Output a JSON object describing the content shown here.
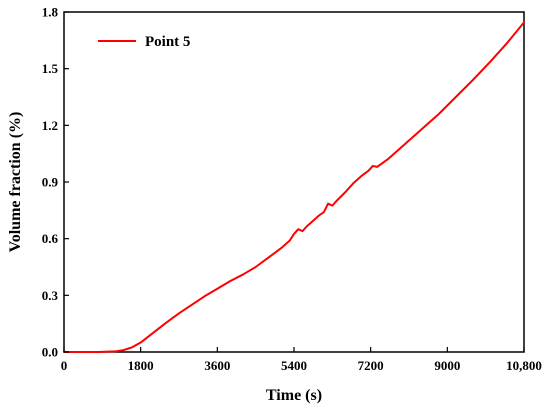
{
  "chart_data": {
    "type": "line",
    "xlabel": "Time (s)",
    "ylabel": "Volume fraction (%)",
    "xlim": [
      0,
      10800
    ],
    "ylim": [
      0,
      1.8
    ],
    "x_ticks": [
      0,
      1800,
      3600,
      5400,
      7200,
      9000,
      10800
    ],
    "x_tick_labels": [
      "0",
      "1800",
      "3600",
      "5400",
      "7200",
      "9000",
      "10,800"
    ],
    "y_ticks": [
      0.0,
      0.3,
      0.6,
      0.9,
      1.2,
      1.5,
      1.8
    ],
    "y_tick_labels": [
      "0.0",
      "0.3",
      "0.6",
      "0.9",
      "1.2",
      "1.5",
      "1.8"
    ],
    "grid": false,
    "legend_position": "top-left",
    "series": [
      {
        "name": "Point 5",
        "color": "#ff0000",
        "x": [
          0,
          800,
          1200,
          1400,
          1600,
          1800,
          2000,
          2200,
          2400,
          2700,
          3000,
          3300,
          3600,
          3900,
          4200,
          4500,
          4800,
          5100,
          5300,
          5400,
          5500,
          5600,
          5700,
          5800,
          6000,
          6100,
          6200,
          6300,
          6400,
          6600,
          6800,
          7000,
          7150,
          7250,
          7350,
          7600,
          8000,
          8400,
          8800,
          9200,
          9600,
          10000,
          10400,
          10800
        ],
        "y": [
          0.0,
          0.0,
          0.003,
          0.01,
          0.025,
          0.05,
          0.085,
          0.12,
          0.155,
          0.205,
          0.25,
          0.295,
          0.335,
          0.375,
          0.41,
          0.45,
          0.5,
          0.55,
          0.59,
          0.625,
          0.65,
          0.64,
          0.665,
          0.685,
          0.725,
          0.74,
          0.785,
          0.775,
          0.8,
          0.845,
          0.895,
          0.935,
          0.96,
          0.985,
          0.98,
          1.02,
          1.1,
          1.18,
          1.26,
          1.35,
          1.44,
          1.535,
          1.635,
          1.745
        ]
      }
    ]
  }
}
